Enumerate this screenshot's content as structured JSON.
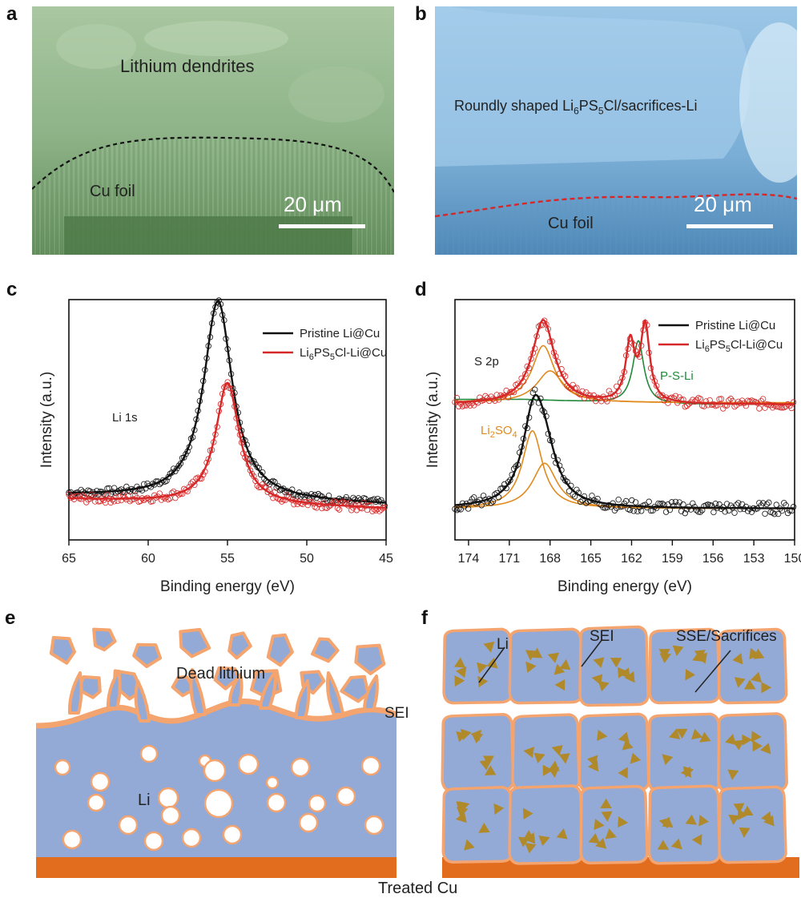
{
  "panels": {
    "a": {
      "letter": "a",
      "top_label": "Lithium dendrites",
      "bottom_label": "Cu foil",
      "scale_bar": "20 μm"
    },
    "b": {
      "letter": "b",
      "label_prefix": "Roundly shaped Li",
      "label_sub1": "6",
      "label_mid": "PS",
      "label_sub2": "5",
      "label_suffix": "Cl/sacrifices-Li",
      "bottom_label": "Cu foil",
      "scale_bar": "20 μm"
    },
    "c": {
      "letter": "c",
      "annotation": "Li 1s"
    },
    "d": {
      "letter": "d",
      "annotation": "S 2p",
      "peak_label_green": "P-S-Li",
      "peak_label_orange_base": "Li",
      "peak_label_orange_sub1": "2",
      "peak_label_orange_mid": "SO",
      "peak_label_orange_sub2": "4"
    },
    "e": {
      "letter": "e",
      "dead_label": "Dead lithium",
      "sei_label": "SEI",
      "li_label": "Li"
    },
    "f": {
      "letter": "f",
      "li_label": "Li",
      "sei_label": "SEI",
      "sse_label": "SSE/Sacrifices"
    }
  },
  "bottom_caption": "Treated Cu",
  "legend": {
    "pristine": "Pristine Li@Cu",
    "coated_base": "Li",
    "coated_sub1": "6",
    "coated_mid": "PS",
    "coated_sub2": "5",
    "coated_suffix": "Cl-Li@Cu"
  },
  "colors": {
    "sem_a": "#8fb489",
    "sem_b": "#7aaed6",
    "pristine": "#111111",
    "coated": "#d62828",
    "fit_orange": "#e08a1e",
    "fit_green": "#1e8a3a",
    "li_blue": "#93a9d6",
    "sei_orange": "#f4a46e",
    "cu_orange": "#e36d1f",
    "sse_particle": "#b08a2a"
  },
  "chart_data": [
    {
      "type": "line",
      "panel": "c",
      "xlabel": "Binding energy (eV)",
      "ylabel": "Intensity (a.u.)",
      "xlim": [
        65,
        45
      ],
      "x_ticks": [
        65,
        60,
        55,
        50,
        45
      ],
      "series": [
        {
          "name": "Pristine Li@Cu",
          "peak_center": 55.6,
          "peak_height": 1.0,
          "baseline": 0.08,
          "width": 1.1
        },
        {
          "name": "Li6PS5Cl-Li@Cu",
          "peak_center": 55.0,
          "peak_height": 0.61,
          "baseline": 0.06,
          "width": 0.9
        }
      ]
    },
    {
      "type": "line",
      "panel": "d",
      "xlabel": "Binding energy (eV)",
      "ylabel": "Intensity (a.u.)",
      "xlim": [
        175,
        150
      ],
      "x_ticks": [
        174,
        171,
        168,
        165,
        162,
        159,
        156,
        153,
        150
      ],
      "series": [
        {
          "name": "Pristine Li@Cu",
          "peaks": [
            {
              "center": 169.2,
              "height": 1.0,
              "width": 1.0
            },
            {
              "center": 168.4,
              "height": 0.5,
              "width": 1.1
            }
          ]
        },
        {
          "name": "Li6PS5Cl-Li@Cu",
          "peaks": [
            {
              "center": 168.5,
              "height": 1.0,
              "width": 1.0
            },
            {
              "center": 162.1,
              "height": 0.7,
              "width": 0.4
            },
            {
              "center": 161.0,
              "height": 0.9,
              "width": 0.4
            }
          ]
        }
      ]
    }
  ]
}
